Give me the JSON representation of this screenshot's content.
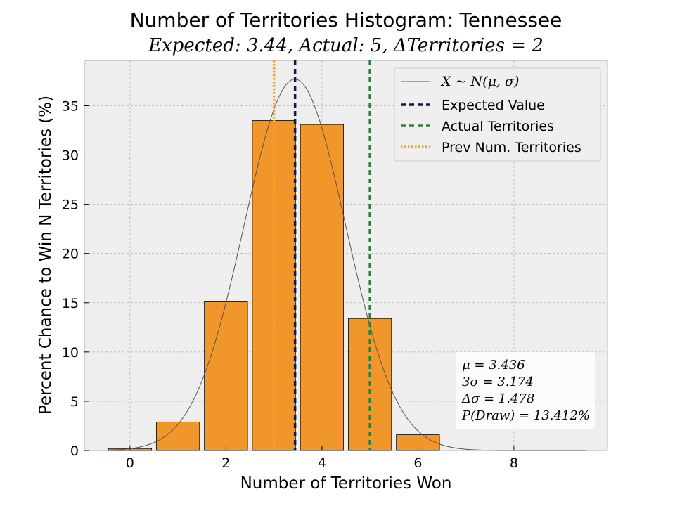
{
  "chart_data": {
    "type": "bar",
    "title": "Number of Territories Histogram: Tennessee",
    "subtitle": "Expected: 3.44, Actual: 5, ΔTerritories = 2",
    "xlabel": "Number of Territories Won",
    "ylabel": "Percent Chance to Win N Territories (%)",
    "xlim": [
      -0.95,
      9.95
    ],
    "ylim": [
      0,
      39.6
    ],
    "xticks": [
      0,
      2,
      4,
      6,
      8
    ],
    "yticks": [
      0,
      5,
      10,
      15,
      20,
      25,
      30,
      35
    ],
    "grid": true,
    "bar_color": "#f0962a",
    "bars": [
      {
        "x": 0,
        "value": 0.2
      },
      {
        "x": 1,
        "value": 2.9
      },
      {
        "x": 2,
        "value": 15.1
      },
      {
        "x": 3,
        "value": 33.5
      },
      {
        "x": 4,
        "value": 33.1
      },
      {
        "x": 5,
        "value": 13.4
      },
      {
        "x": 6,
        "value": 1.6
      }
    ],
    "normal_curve": {
      "mu": 3.436,
      "sigma": 1.058,
      "color": "#555555",
      "legend": "X ~ N(μ, σ)"
    },
    "vlines": [
      {
        "x": 3.44,
        "label": "Expected Value",
        "color": "#0d1b40",
        "style": "dashed"
      },
      {
        "x": 5,
        "label": "Actual Territories",
        "color": "#2e7d3a",
        "style": "dashed"
      },
      {
        "x": 3,
        "label": "Prev Num. Territories",
        "color": "#ffa31a",
        "style": "dotted"
      }
    ],
    "legend_position": "top-right",
    "stats_box": {
      "lines": [
        "μ = 3.436",
        "3σ = 3.174",
        "Δσ = 1.478",
        "P(Draw) = 13.412%"
      ],
      "position": "bottom-right"
    }
  }
}
